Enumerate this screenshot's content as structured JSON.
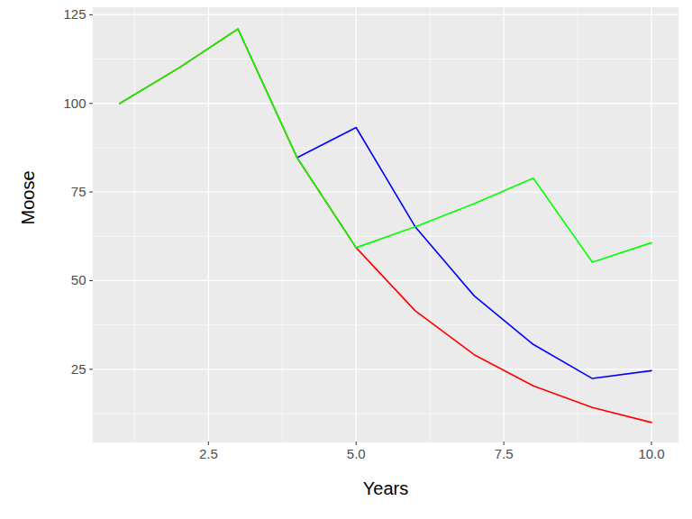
{
  "chart_data": {
    "type": "line",
    "x_label": "Years",
    "y_label": "Moose",
    "x": [
      1,
      2,
      3,
      4,
      5,
      6,
      7,
      8,
      9,
      10
    ],
    "series": [
      {
        "color": "#ff0000",
        "values": [
          100,
          110,
          121,
          84.7,
          59.3,
          41.5,
          29.1,
          20.3,
          14.2,
          10.0
        ]
      },
      {
        "color": "#0000ff",
        "values": [
          null,
          null,
          null,
          84.7,
          93.2,
          65.2,
          45.7,
          32.0,
          22.4,
          24.6
        ]
      },
      {
        "color": "#00ff00",
        "values": [
          100,
          110,
          121,
          84.7,
          59.3,
          65.2,
          71.7,
          78.9,
          55.2,
          60.7
        ]
      }
    ],
    "xlim": [
      0.55,
      10.45
    ],
    "ylim": [
      4.5,
      127
    ],
    "xticks": [
      2.5,
      {
        "value": 5,
        "label": "5.0"
      },
      7.5,
      {
        "value": 10,
        "label": "10.0"
      }
    ],
    "yticks": [
      25,
      50,
      75,
      100,
      125
    ],
    "grid": true
  }
}
